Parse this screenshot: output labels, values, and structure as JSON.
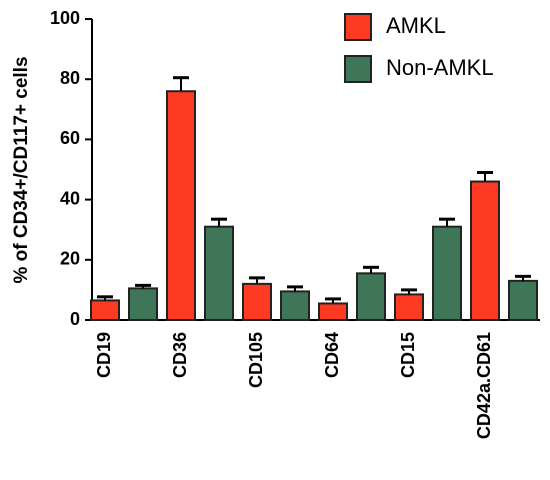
{
  "chart_data": {
    "type": "bar",
    "y_label": "% of CD34+/CD117+ cells",
    "categories": [
      "CD19",
      "CD36",
      "CD105",
      "CD64",
      "CD15",
      "CD42a.CD61"
    ],
    "series": [
      {
        "name": "AMKL",
        "color": "#ff3a22",
        "values": [
          6.5,
          76,
          12,
          5.5,
          8.5,
          46
        ],
        "errors": [
          1.2,
          4.5,
          2,
          1.5,
          1.5,
          3
        ]
      },
      {
        "name": "Non-AMKL",
        "color": "#3e7657",
        "values": [
          10.5,
          31,
          9.5,
          15.5,
          31,
          13
        ],
        "errors": [
          1,
          2.5,
          1.5,
          2,
          2.5,
          1.5
        ]
      }
    ],
    "ylim": [
      0,
      100
    ],
    "yticks": [
      0,
      20,
      40,
      60,
      80,
      100
    ],
    "legend": "top-right"
  }
}
